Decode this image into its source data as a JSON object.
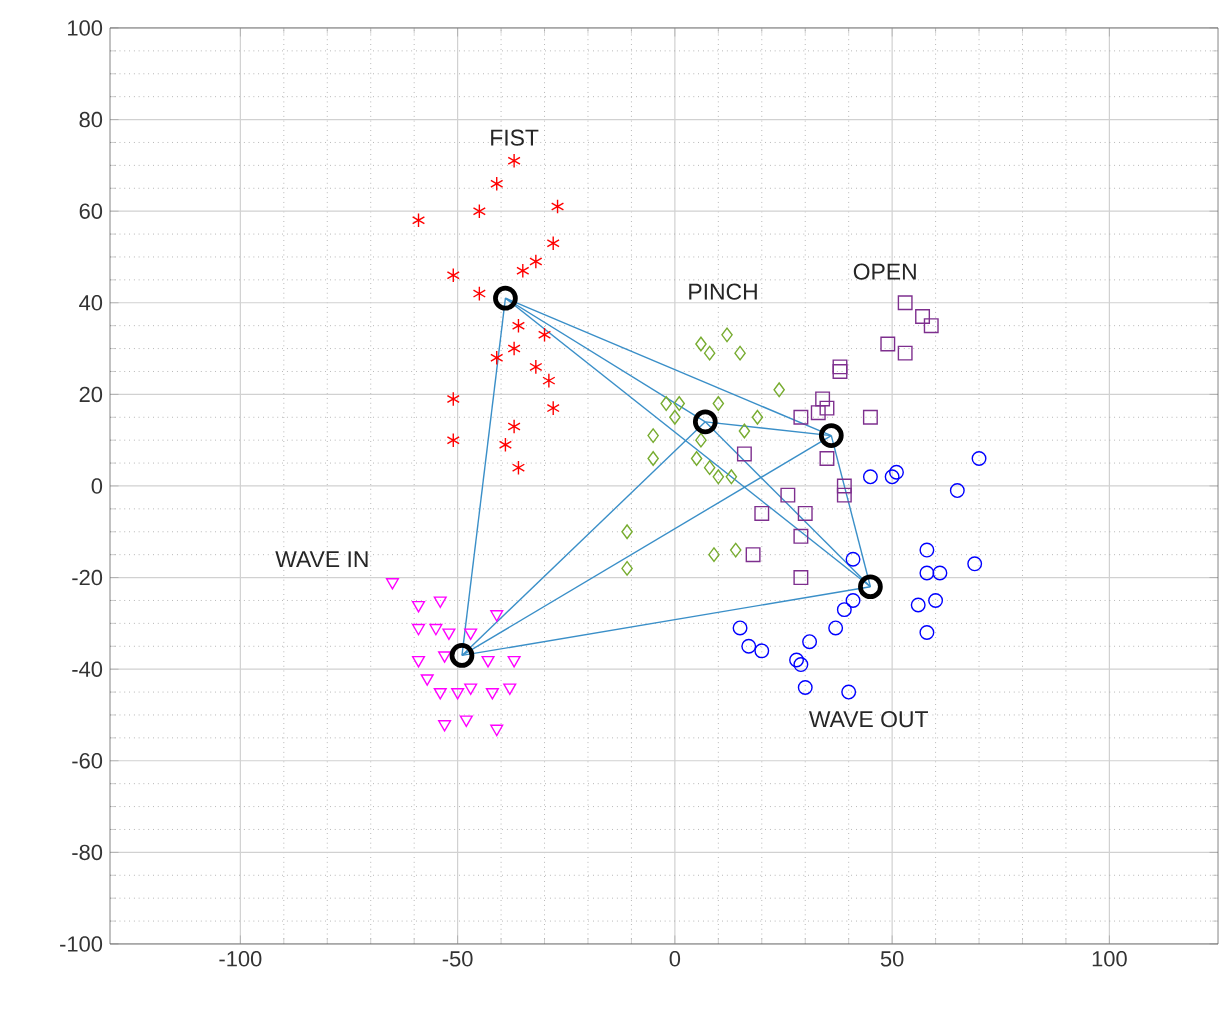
{
  "chart_data": {
    "type": "scatter",
    "xlim": [
      -130,
      125
    ],
    "ylim": [
      -100,
      100
    ],
    "xticks": [
      -100,
      -50,
      0,
      50,
      100
    ],
    "yticks": [
      -100,
      -80,
      -60,
      -40,
      -20,
      0,
      20,
      40,
      60,
      80,
      100
    ],
    "grid": true,
    "series": [
      {
        "type": "line",
        "marker": "none",
        "color": "#3a8fc8",
        "x": [
          -39,
          -49
        ],
        "values": [
          41,
          -37
        ]
      },
      {
        "type": "line",
        "marker": "none",
        "color": "#3a8fc8",
        "x": [
          -39,
          7
        ],
        "values": [
          41,
          14
        ]
      },
      {
        "type": "line",
        "marker": "none",
        "color": "#3a8fc8",
        "x": [
          -39,
          36
        ],
        "values": [
          41,
          11
        ]
      },
      {
        "type": "line",
        "marker": "none",
        "color": "#3a8fc8",
        "x": [
          -39,
          45
        ],
        "values": [
          41,
          -22
        ]
      },
      {
        "type": "line",
        "marker": "none",
        "color": "#3a8fc8",
        "x": [
          -49,
          7
        ],
        "values": [
          -37,
          14
        ]
      },
      {
        "type": "line",
        "marker": "none",
        "color": "#3a8fc8",
        "x": [
          -49,
          36
        ],
        "values": [
          -37,
          11
        ]
      },
      {
        "type": "line",
        "marker": "none",
        "color": "#3a8fc8",
        "x": [
          -49,
          45
        ],
        "values": [
          -37,
          -22
        ]
      },
      {
        "type": "line",
        "marker": "none",
        "color": "#3a8fc8",
        "x": [
          7,
          36
        ],
        "values": [
          14,
          11
        ]
      },
      {
        "type": "line",
        "marker": "none",
        "color": "#3a8fc8",
        "x": [
          7,
          45
        ],
        "values": [
          14,
          -22
        ]
      },
      {
        "type": "line",
        "marker": "none",
        "color": "#3a8fc8",
        "x": [
          36,
          45
        ],
        "values": [
          11,
          -22
        ]
      },
      {
        "name": "FIST",
        "marker": "cross",
        "color": "#ff0000",
        "x": [
          -37,
          -41,
          -45,
          -59,
          -27,
          -28,
          -32,
          -35,
          -51,
          -45,
          -36,
          -30,
          -37,
          -41,
          -32,
          -29,
          -51,
          -28,
          -37,
          -51,
          -39,
          -36
        ],
        "values": [
          71,
          66,
          60,
          58,
          61,
          53,
          49,
          47,
          46,
          42,
          35,
          33,
          30,
          28,
          26,
          23,
          19,
          17,
          13,
          10,
          9,
          4
        ]
      },
      {
        "name": "WAVE IN",
        "marker": "triangle",
        "color": "#ff00ff",
        "x": [
          -65,
          -59,
          -54,
          -59,
          -55,
          -52,
          -47,
          -41,
          -59,
          -53,
          -43,
          -37,
          -57,
          -54,
          -50,
          -47,
          -42,
          -38,
          -53,
          -48,
          -41
        ],
        "values": [
          -21,
          -26,
          -25,
          -31,
          -31,
          -32,
          -32,
          -28,
          -38,
          -37,
          -38,
          -38,
          -42,
          -45,
          -45,
          -44,
          -45,
          -44,
          -52,
          -51,
          -53
        ]
      },
      {
        "name": "PINCH",
        "marker": "diamond",
        "color": "#77ac30",
        "x": [
          6,
          8,
          12,
          15,
          24,
          -2,
          1,
          0,
          10,
          19,
          -5,
          6,
          16,
          -5,
          5,
          8,
          10,
          13,
          -11,
          -11,
          9,
          14
        ],
        "values": [
          31,
          29,
          33,
          29,
          21,
          18,
          18,
          15,
          18,
          15,
          11,
          10,
          12,
          6,
          6,
          4,
          2,
          2,
          -10,
          -18,
          -15,
          -14
        ]
      },
      {
        "name": "OPEN",
        "marker": "square",
        "color": "#7e2f8e",
        "x": [
          53,
          57,
          59,
          49,
          53,
          38,
          38,
          34,
          45,
          29,
          35,
          33,
          35,
          16,
          39,
          39,
          26,
          20,
          30,
          29,
          18,
          29
        ],
        "values": [
          40,
          37,
          35,
          31,
          29,
          26,
          25,
          19,
          15,
          15,
          17,
          16,
          6,
          7,
          0,
          -2,
          -2,
          -6,
          -6,
          -11,
          -15,
          -20
        ]
      },
      {
        "name": "WAVE OUT",
        "marker": "circle",
        "color": "#0000ff",
        "x": [
          70,
          45,
          50,
          51,
          65,
          58,
          58,
          61,
          69,
          56,
          60,
          58,
          41,
          41,
          39,
          37,
          15,
          17,
          20,
          31,
          28,
          29,
          30,
          40
        ],
        "values": [
          6,
          2,
          2,
          3,
          -1,
          -14,
          -19,
          -19,
          -17,
          -26,
          -25,
          -32,
          -16,
          -25,
          -27,
          -31,
          -31,
          -35,
          -36,
          -34,
          -38,
          -39,
          -44,
          -45
        ]
      },
      {
        "marker": "circle",
        "color": "#000000",
        "x": [
          -39,
          -49,
          7,
          36,
          45
        ],
        "values": [
          41,
          -37,
          14,
          11,
          -22
        ]
      }
    ]
  }
}
